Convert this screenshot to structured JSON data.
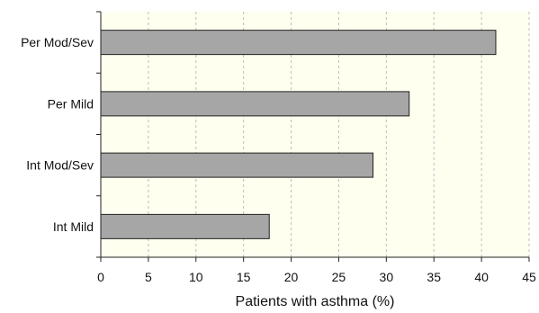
{
  "chart_data": {
    "type": "bar",
    "orientation": "horizontal",
    "title": "",
    "xlabel": "Patients with asthma (%)",
    "ylabel": "",
    "categories": [
      "Per Mod/Sev",
      "Per Mild",
      "Int Mod/Sev",
      "Int Mild"
    ],
    "values": [
      41.5,
      32.4,
      28.6,
      17.7
    ],
    "xlim": [
      0,
      45
    ],
    "xticks": [
      "0",
      "5",
      "10",
      "15",
      "20",
      "25",
      "30",
      "35",
      "40",
      "45"
    ],
    "grid": "vertical dashed",
    "legend": "none",
    "colors": {
      "plot_background": "#FFFFF0",
      "bar_fill": "#A6A6A6",
      "bar_stroke": "#222222",
      "grid": "#BDBDBD"
    }
  }
}
